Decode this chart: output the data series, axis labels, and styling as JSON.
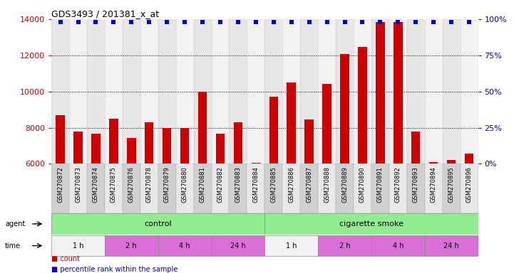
{
  "title": "GDS3493 / 201381_x_at",
  "samples": [
    "GSM270872",
    "GSM270873",
    "GSM270874",
    "GSM270875",
    "GSM270876",
    "GSM270878",
    "GSM270879",
    "GSM270880",
    "GSM270881",
    "GSM270882",
    "GSM270883",
    "GSM270884",
    "GSM270885",
    "GSM270886",
    "GSM270887",
    "GSM270888",
    "GSM270889",
    "GSM270890",
    "GSM270891",
    "GSM270892",
    "GSM270893",
    "GSM270894",
    "GSM270895",
    "GSM270896"
  ],
  "counts": [
    8700,
    7800,
    7650,
    8500,
    7450,
    8300,
    8000,
    8000,
    10000,
    7650,
    8300,
    6050,
    9700,
    10500,
    8450,
    10400,
    12050,
    12450,
    13850,
    13850,
    7800,
    6100,
    6200,
    6550
  ],
  "ymin": 6000,
  "ymax": 14000,
  "yticks_left": [
    6000,
    8000,
    10000,
    12000,
    14000
  ],
  "pct_ticks": [
    0,
    25,
    50,
    75,
    100
  ],
  "bar_color": "#cc0000",
  "dot_color": "#0000cc",
  "agent_groups": [
    {
      "label": "control",
      "start": 0,
      "end": 12,
      "color": "#90ee90"
    },
    {
      "label": "cigarette smoke",
      "start": 12,
      "end": 24,
      "color": "#90ee90"
    }
  ],
  "time_groups": [
    {
      "label": "1 h",
      "start": 0,
      "end": 3,
      "color": "#f2f2f2"
    },
    {
      "label": "2 h",
      "start": 3,
      "end": 6,
      "color": "#da70d6"
    },
    {
      "label": "4 h",
      "start": 6,
      "end": 9,
      "color": "#da70d6"
    },
    {
      "label": "24 h",
      "start": 9,
      "end": 12,
      "color": "#da70d6"
    },
    {
      "label": "1 h",
      "start": 12,
      "end": 15,
      "color": "#f2f2f2"
    },
    {
      "label": "2 h",
      "start": 15,
      "end": 18,
      "color": "#da70d6"
    },
    {
      "label": "4 h",
      "start": 18,
      "end": 21,
      "color": "#da70d6"
    },
    {
      "label": "24 h",
      "start": 21,
      "end": 24,
      "color": "#da70d6"
    }
  ],
  "col_bg_even": "#d0d0d0",
  "col_bg_odd": "#e8e8e8",
  "label_left": "agent",
  "label_left2": "time",
  "legend_items": [
    {
      "label": "count",
      "color": "#cc0000",
      "marker": "s"
    },
    {
      "label": "percentile rank within the sample",
      "color": "#0000cc",
      "marker": "s"
    }
  ]
}
